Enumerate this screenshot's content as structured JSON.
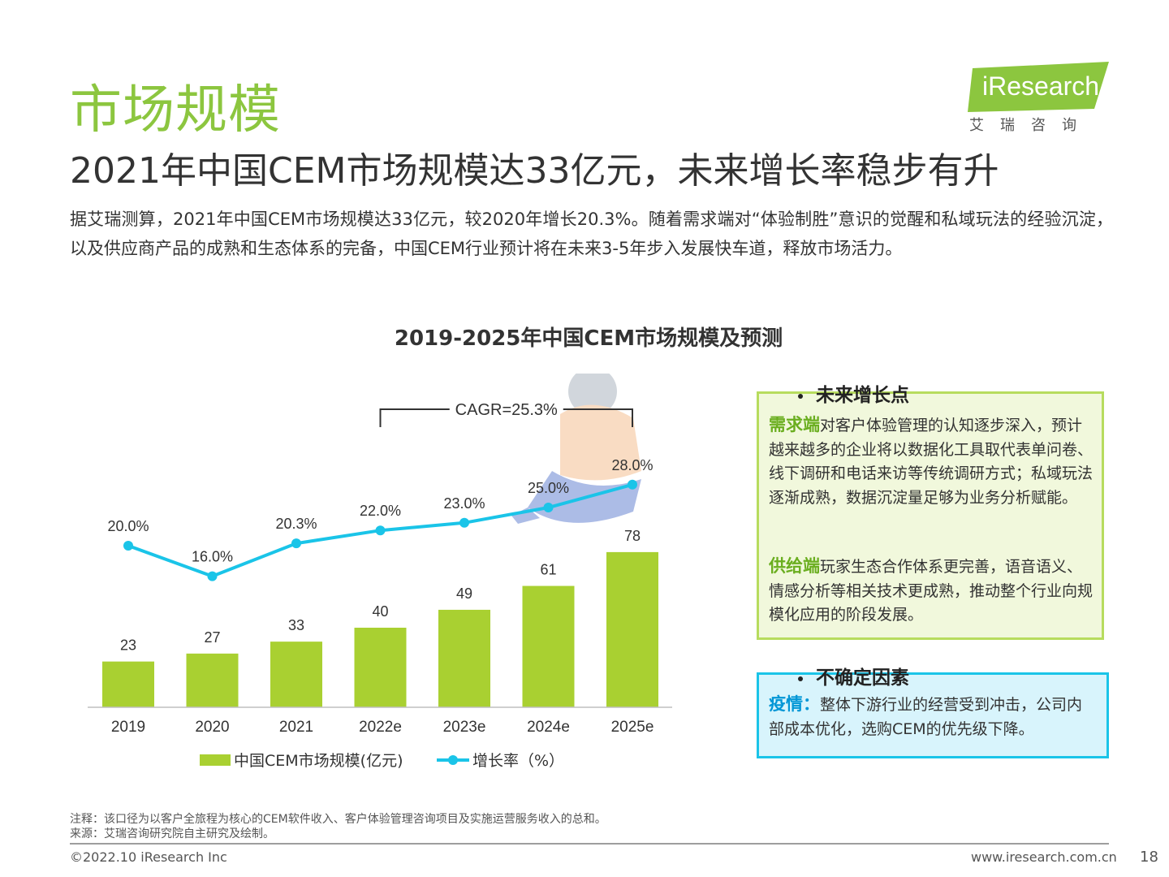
{
  "header": {
    "title": "市场规模",
    "subtitle": "2021年中国CEM市场规模达33亿元，未来增长率稳步有升",
    "intro": "据艾瑞测算，2021年中国CEM市场规模达33亿元，较2020年增长20.3%。随着需求端对“体验制胜”意识的觉醒和私域玩法的经验沉淀，以及供应商产品的成熟和生态体系的完备，中国CEM行业预计将在未来3-5年步入发展快车道，释放市场活力。"
  },
  "logo": {
    "brand": "iResearch",
    "sub": "艾瑞咨询"
  },
  "colors": {
    "accent": "#8cc63f",
    "line": "#1ac4e8",
    "bar": "#a9d031"
  },
  "chart_data": {
    "type": "bar",
    "title": "2019-2025年中国CEM市场规模及预测",
    "categories": [
      "2019",
      "2020",
      "2021",
      "2022e",
      "2023e",
      "2024e",
      "2025e"
    ],
    "series": [
      {
        "name": "中国CEM市场规模(亿元)",
        "type": "bar",
        "values": [
          23,
          27,
          33,
          40,
          49,
          61,
          78
        ],
        "labels": [
          "23",
          "27",
          "33",
          "40",
          "49",
          "61",
          "78"
        ]
      },
      {
        "name": "增长率（%）",
        "type": "line",
        "values": [
          20.0,
          16.0,
          20.3,
          22.0,
          23.0,
          25.0,
          28.0
        ],
        "labels": [
          "20.0%",
          "16.0%",
          "20.3%",
          "22.0%",
          "23.0%",
          "25.0%",
          "28.0%"
        ]
      }
    ],
    "annotation": "CAGR=25.3%",
    "annotation_span": [
      "2022e",
      "2025e"
    ],
    "legend_position": "bottom",
    "grid": false
  },
  "panels": {
    "growth": {
      "heading": "未来增长点",
      "demand_kw": "需求端",
      "demand_text": "对客户体验管理的认知逐步深入，预计越来越多的企业将以数据化工具取代表单问卷、线下调研和电话来访等传统调研方式；私域玩法逐渐成熟，数据沉淀量足够为业务分析赋能。",
      "supply_kw": "供给端",
      "supply_text": "玩家生态合作体系更完善，语音语义、情感分析等相关技术更成熟，推动整个行业向规模化应用的阶段发展。"
    },
    "risk": {
      "heading": "不确定因素",
      "kw": "疫情：",
      "text": "整体下游行业的经营受到冲击，公司内部成本优化，选购CEM的优先级下降。"
    }
  },
  "footer": {
    "note": "注释：该口径为以客户全旅程为核心的CEM软件收入、客户体验管理咨询项目及实施运营服务收入的总和。",
    "source": "来源：艾瑞咨询研究院自主研究及绘制。",
    "copyright": "©2022.10 iResearch Inc",
    "website": "www.iresearch.com.cn",
    "page": "18"
  }
}
